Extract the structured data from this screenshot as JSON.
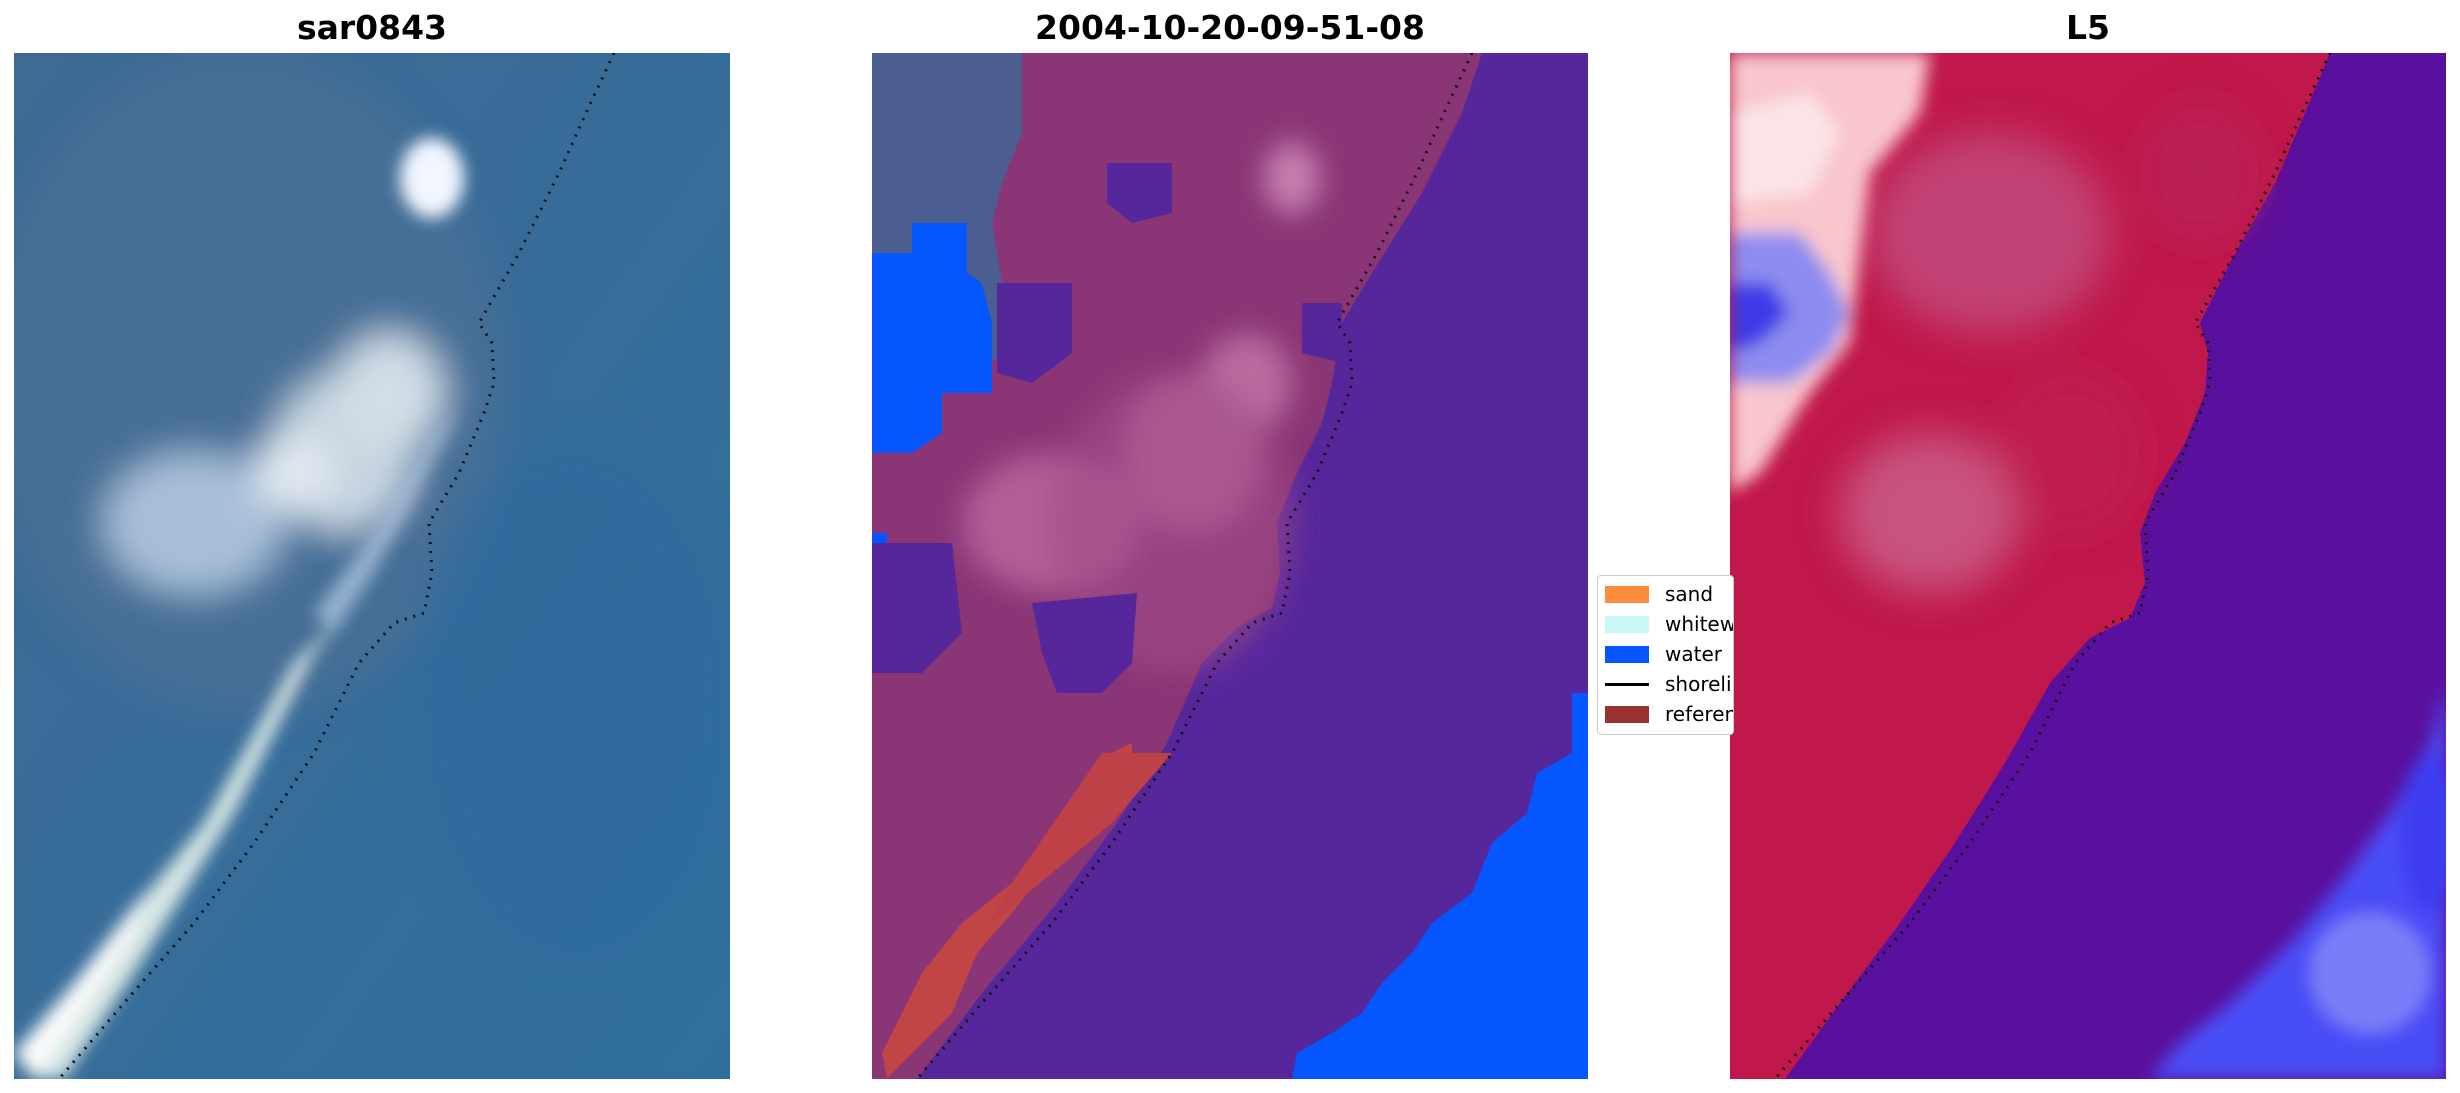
{
  "panels": [
    {
      "title": "sar0843",
      "icon": "satellite-image-rgb"
    },
    {
      "title": "2004-10-20-09-51-08",
      "icon": "classified-image"
    },
    {
      "title": "L5",
      "icon": "index-image"
    }
  ],
  "legend": {
    "items": [
      {
        "label": "sand",
        "color": "#fd8d3c",
        "kind": "patch"
      },
      {
        "label": "whitewater",
        "color": "#c8f8f8",
        "kind": "patch"
      },
      {
        "label": "water",
        "color": "#0656ff",
        "kind": "patch"
      },
      {
        "label": "shoreline",
        "color": "#000000",
        "kind": "line"
      },
      {
        "label": "reference",
        "color": "#9b3232",
        "kind": "patch"
      }
    ]
  }
}
